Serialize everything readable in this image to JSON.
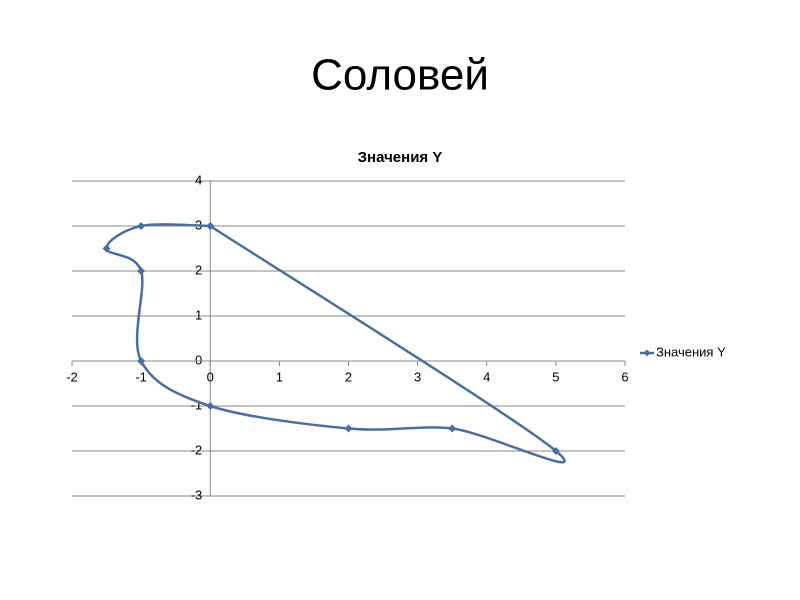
{
  "title": "Соловей",
  "chart_data": {
    "type": "scatter",
    "title": "Значения Y",
    "series": [
      {
        "name": "Значения Y",
        "color": "#4a6f9f",
        "x": [
          0,
          -1,
          -1.5,
          -1,
          -1,
          0,
          2,
          3.5,
          5,
          0
        ],
        "y": [
          3,
          3,
          2.5,
          2,
          0,
          -1,
          -1.5,
          -1.5,
          -2,
          3
        ]
      }
    ],
    "xlim": [
      -2,
      6
    ],
    "ylim": [
      -3,
      4
    ],
    "xticks": [
      -2,
      -1,
      0,
      1,
      2,
      3,
      4,
      5,
      6
    ],
    "yticks": [
      -3,
      -2,
      -1,
      0,
      1,
      2,
      3,
      4
    ],
    "grid": true,
    "smooth": true,
    "legend": "right"
  }
}
